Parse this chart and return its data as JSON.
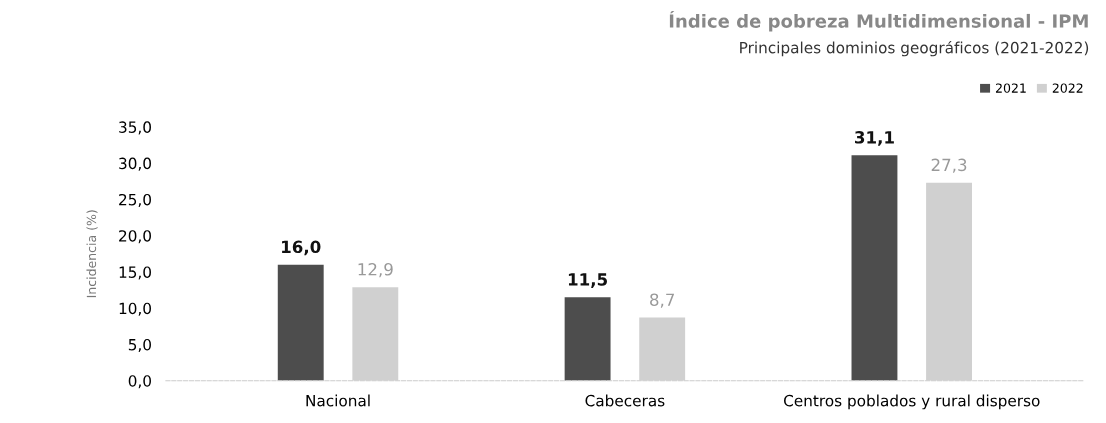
{
  "chart_data": {
    "type": "bar",
    "title": "Índice de pobreza Multidimensional - IPM",
    "subtitle": "Principales dominios geográficos (2021-2022)",
    "ylabel": "Incidencia (%)",
    "categories": [
      "Nacional",
      "Cabeceras",
      "Centros poblados y rural disperso"
    ],
    "series": [
      {
        "name": "2021",
        "color": "#4d4d4d",
        "values": [
          16.0,
          11.5,
          31.1
        ],
        "value_labels": [
          "16,0",
          "11,5",
          "31,1"
        ]
      },
      {
        "name": "2022",
        "color": "#d0d0d0",
        "values": [
          12.9,
          8.7,
          27.3
        ],
        "value_labels": [
          "12,9",
          "8,7",
          "27,3"
        ]
      }
    ],
    "ylim": [
      0,
      35
    ],
    "yticks": [
      {
        "value": 0,
        "label": "0,0"
      },
      {
        "value": 5,
        "label": "5,0"
      },
      {
        "value": 10,
        "label": "10,0"
      },
      {
        "value": 15,
        "label": "15,0"
      },
      {
        "value": 20,
        "label": "20,0"
      },
      {
        "value": 25,
        "label": "25,0"
      },
      {
        "value": 30,
        "label": "30,0"
      },
      {
        "value": 35,
        "label": "35,0"
      }
    ],
    "grid": false,
    "legend": "top right"
  }
}
